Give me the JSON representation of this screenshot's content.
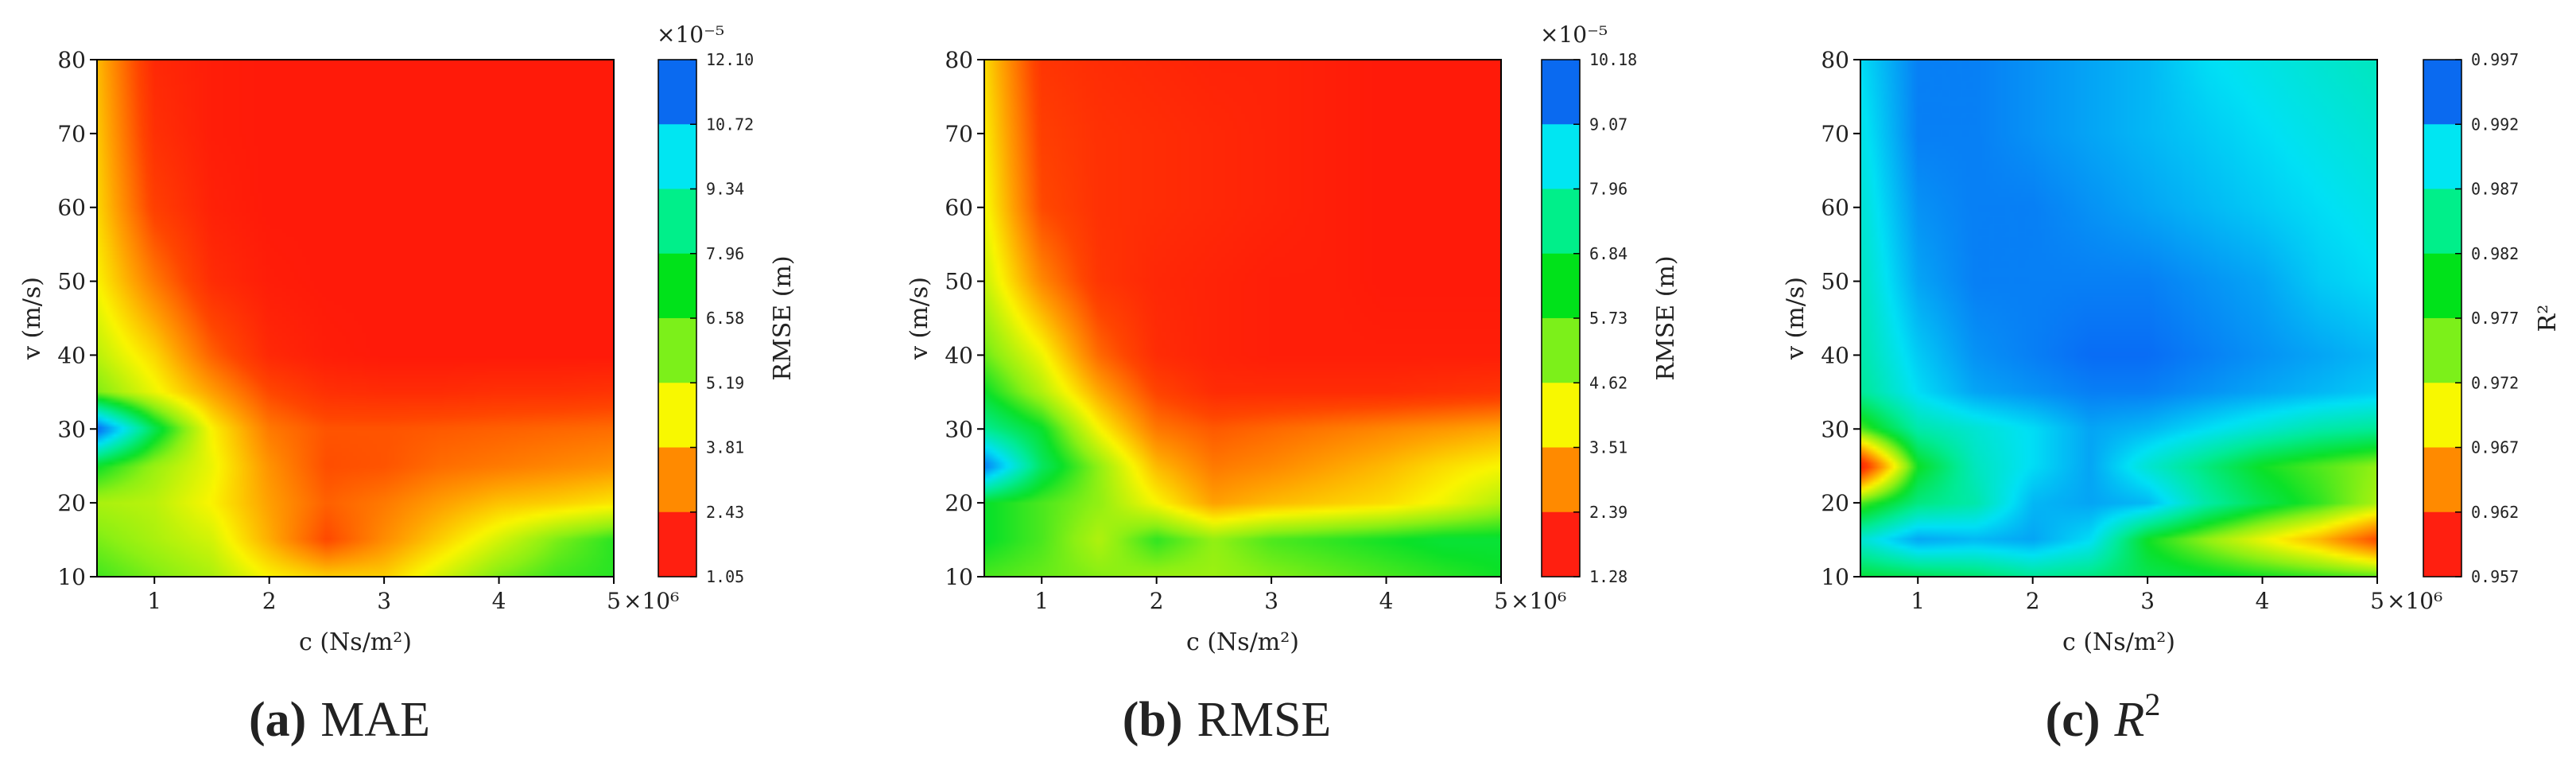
{
  "chart_data": [
    {
      "type": "heatmap",
      "caption_letter": "(a)",
      "caption_text": "MAE",
      "xlabel": "c  (Ns/m²)",
      "ylabel": "v  (m/s)",
      "x_ticks": [
        "1",
        "2",
        "3",
        "4",
        "5"
      ],
      "x_ticks_values": [
        1,
        2,
        3,
        4,
        5
      ],
      "x_multiplier": "×10⁶",
      "y_ticks": [
        "10",
        "20",
        "30",
        "40",
        "50",
        "60",
        "70",
        "80"
      ],
      "y_ticks_values": [
        10,
        20,
        30,
        40,
        50,
        60,
        70,
        80
      ],
      "xlim": [
        0.5,
        5
      ],
      "ylim": [
        10,
        80
      ],
      "colorbar": {
        "label": "RMSE (m)",
        "multiplier": "×10⁻⁵",
        "ticks": [
          "12.10",
          "10.72",
          "9.34",
          "7.96",
          "6.58",
          "5.19",
          "3.81",
          "2.43",
          "1.05"
        ],
        "min": 1.05,
        "max": 12.1,
        "high_is_blue": true
      },
      "x": [
        0.5,
        1.0,
        1.5,
        2.0,
        2.5,
        3.0,
        3.5,
        4.0,
        4.5,
        5.0
      ],
      "y": [
        10,
        15,
        20,
        25,
        30,
        35,
        40,
        50,
        60,
        70,
        80
      ],
      "z": [
        [
          7.0,
          6.5,
          6.0,
          5.0,
          4.5,
          4.5,
          5.5,
          6.5,
          7.0,
          7.2
        ],
        [
          6.5,
          6.0,
          5.5,
          4.0,
          2.4,
          3.5,
          4.5,
          5.5,
          6.5,
          7.2
        ],
        [
          6.0,
          5.8,
          5.0,
          3.8,
          2.8,
          3.2,
          3.8,
          4.3,
          4.5,
          4.8
        ],
        [
          7.5,
          6.2,
          5.2,
          3.6,
          2.5,
          2.6,
          3.0,
          3.2,
          3.4,
          3.6
        ],
        [
          12.0,
          8.0,
          5.0,
          3.2,
          2.6,
          2.6,
          2.7,
          2.8,
          2.9,
          3.0
        ],
        [
          6.5,
          5.2,
          3.8,
          2.4,
          1.8,
          1.7,
          1.7,
          1.8,
          1.8,
          1.9
        ],
        [
          5.8,
          4.6,
          2.8,
          1.6,
          1.3,
          1.2,
          1.2,
          1.2,
          1.2,
          1.2
        ],
        [
          5.0,
          3.2,
          1.7,
          1.3,
          1.2,
          1.2,
          1.2,
          1.2,
          1.2,
          1.2
        ],
        [
          4.6,
          2.2,
          1.4,
          1.2,
          1.2,
          1.2,
          1.2,
          1.2,
          1.2,
          1.2
        ],
        [
          4.4,
          1.8,
          1.3,
          1.2,
          1.2,
          1.2,
          1.2,
          1.2,
          1.2,
          1.2
        ],
        [
          4.2,
          1.6,
          1.3,
          1.2,
          1.2,
          1.2,
          1.2,
          1.2,
          1.2,
          1.2
        ]
      ]
    },
    {
      "type": "heatmap",
      "caption_letter": "(b)",
      "caption_text": "RMSE",
      "xlabel": "c  (Ns/m²)",
      "ylabel": "v  (m/s)",
      "x_ticks": [
        "1",
        "2",
        "3",
        "4",
        "5"
      ],
      "x_ticks_values": [
        1,
        2,
        3,
        4,
        5
      ],
      "x_multiplier": "×10⁶",
      "y_ticks": [
        "10",
        "20",
        "30",
        "40",
        "50",
        "60",
        "70",
        "80"
      ],
      "y_ticks_values": [
        10,
        20,
        30,
        40,
        50,
        60,
        70,
        80
      ],
      "xlim": [
        0.5,
        5
      ],
      "ylim": [
        10,
        80
      ],
      "colorbar": {
        "label": "RMSE (m)",
        "multiplier": "×10⁻⁵",
        "ticks": [
          "10.18",
          "9.07",
          "7.96",
          "6.84",
          "5.73",
          "4.62",
          "3.51",
          "2.39",
          "1.28"
        ],
        "min": 1.28,
        "max": 10.18,
        "high_is_blue": true
      },
      "x": [
        0.5,
        1.0,
        1.5,
        2.0,
        2.5,
        3.0,
        3.5,
        4.0,
        4.5,
        5.0
      ],
      "y": [
        10,
        15,
        20,
        25,
        30,
        35,
        40,
        50,
        60,
        70,
        80
      ],
      "z": [
        [
          6.0,
          5.8,
          5.6,
          5.4,
          5.4,
          5.6,
          5.8,
          6.0,
          6.2,
          6.4
        ],
        [
          6.5,
          6.0,
          5.2,
          6.2,
          5.5,
          6.0,
          6.2,
          6.4,
          6.6,
          6.6
        ],
        [
          6.5,
          6.0,
          5.5,
          4.5,
          3.5,
          3.8,
          4.0,
          4.2,
          4.6,
          5.2
        ],
        [
          9.8,
          7.0,
          5.5,
          3.8,
          3.0,
          3.2,
          3.5,
          3.8,
          4.2,
          4.5
        ],
        [
          7.5,
          6.5,
          4.5,
          3.0,
          2.6,
          2.8,
          3.0,
          3.2,
          3.4,
          3.6
        ],
        [
          6.5,
          5.2,
          3.6,
          2.3,
          1.8,
          1.8,
          1.8,
          1.8,
          1.9,
          2.0
        ],
        [
          5.8,
          4.6,
          2.8,
          1.8,
          1.6,
          1.5,
          1.5,
          1.5,
          1.5,
          1.5
        ],
        [
          5.0,
          3.2,
          2.0,
          1.7,
          1.6,
          1.5,
          1.5,
          1.4,
          1.4,
          1.4
        ],
        [
          4.6,
          2.4,
          1.9,
          1.8,
          1.7,
          1.6,
          1.5,
          1.4,
          1.4,
          1.4
        ],
        [
          4.4,
          2.2,
          1.9,
          1.8,
          1.7,
          1.6,
          1.5,
          1.4,
          1.4,
          1.4
        ],
        [
          4.2,
          2.0,
          1.8,
          1.7,
          1.6,
          1.6,
          1.5,
          1.4,
          1.4,
          1.4
        ]
      ]
    },
    {
      "type": "heatmap",
      "caption_letter": "(c)",
      "caption_text": "R",
      "caption_sup": "2",
      "xlabel": "c  (Ns/m²)",
      "ylabel": "v  (m/s)",
      "x_ticks": [
        "1",
        "2",
        "3",
        "4",
        "5"
      ],
      "x_ticks_values": [
        1,
        2,
        3,
        4,
        5
      ],
      "x_multiplier": "×10⁶",
      "y_ticks": [
        "10",
        "20",
        "30",
        "40",
        "50",
        "60",
        "70",
        "80"
      ],
      "y_ticks_values": [
        10,
        20,
        30,
        40,
        50,
        60,
        70,
        80
      ],
      "xlim": [
        0.5,
        5
      ],
      "ylim": [
        10,
        80
      ],
      "colorbar": {
        "label": "R²",
        "multiplier": "",
        "ticks": [
          "0.997",
          "0.992",
          "0.987",
          "0.982",
          "0.977",
          "0.972",
          "0.967",
          "0.962",
          "0.957"
        ],
        "min": 0.957,
        "max": 0.997,
        "high_is_blue": true
      },
      "x": [
        0.5,
        1.0,
        1.5,
        2.0,
        2.5,
        3.0,
        3.5,
        4.0,
        4.5,
        5.0
      ],
      "y": [
        10,
        15,
        20,
        25,
        30,
        35,
        40,
        50,
        60,
        70,
        80
      ],
      "z": [
        [
          0.981,
          0.982,
          0.983,
          0.985,
          0.984,
          0.982,
          0.981,
          0.98,
          0.979,
          0.978
        ],
        [
          0.988,
          0.993,
          0.992,
          0.993,
          0.99,
          0.98,
          0.976,
          0.972,
          0.968,
          0.962
        ],
        [
          0.978,
          0.984,
          0.986,
          0.992,
          0.993,
          0.992,
          0.986,
          0.982,
          0.979,
          0.975
        ],
        [
          0.958,
          0.98,
          0.987,
          0.99,
          0.993,
          0.988,
          0.984,
          0.98,
          0.978,
          0.976
        ],
        [
          0.978,
          0.986,
          0.988,
          0.99,
          0.993,
          0.992,
          0.99,
          0.988,
          0.986,
          0.985
        ],
        [
          0.985,
          0.99,
          0.993,
          0.994,
          0.995,
          0.995,
          0.994,
          0.993,
          0.992,
          0.991
        ],
        [
          0.986,
          0.991,
          0.994,
          0.995,
          0.996,
          0.996,
          0.995,
          0.994,
          0.993,
          0.992
        ],
        [
          0.987,
          0.993,
          0.995,
          0.995,
          0.995,
          0.995,
          0.994,
          0.993,
          0.991,
          0.99
        ],
        [
          0.988,
          0.994,
          0.995,
          0.995,
          0.994,
          0.993,
          0.992,
          0.991,
          0.99,
          0.989
        ],
        [
          0.989,
          0.995,
          0.995,
          0.994,
          0.993,
          0.992,
          0.991,
          0.99,
          0.989,
          0.988
        ],
        [
          0.99,
          0.995,
          0.995,
          0.994,
          0.993,
          0.992,
          0.99,
          0.989,
          0.988,
          0.987
        ]
      ]
    }
  ]
}
